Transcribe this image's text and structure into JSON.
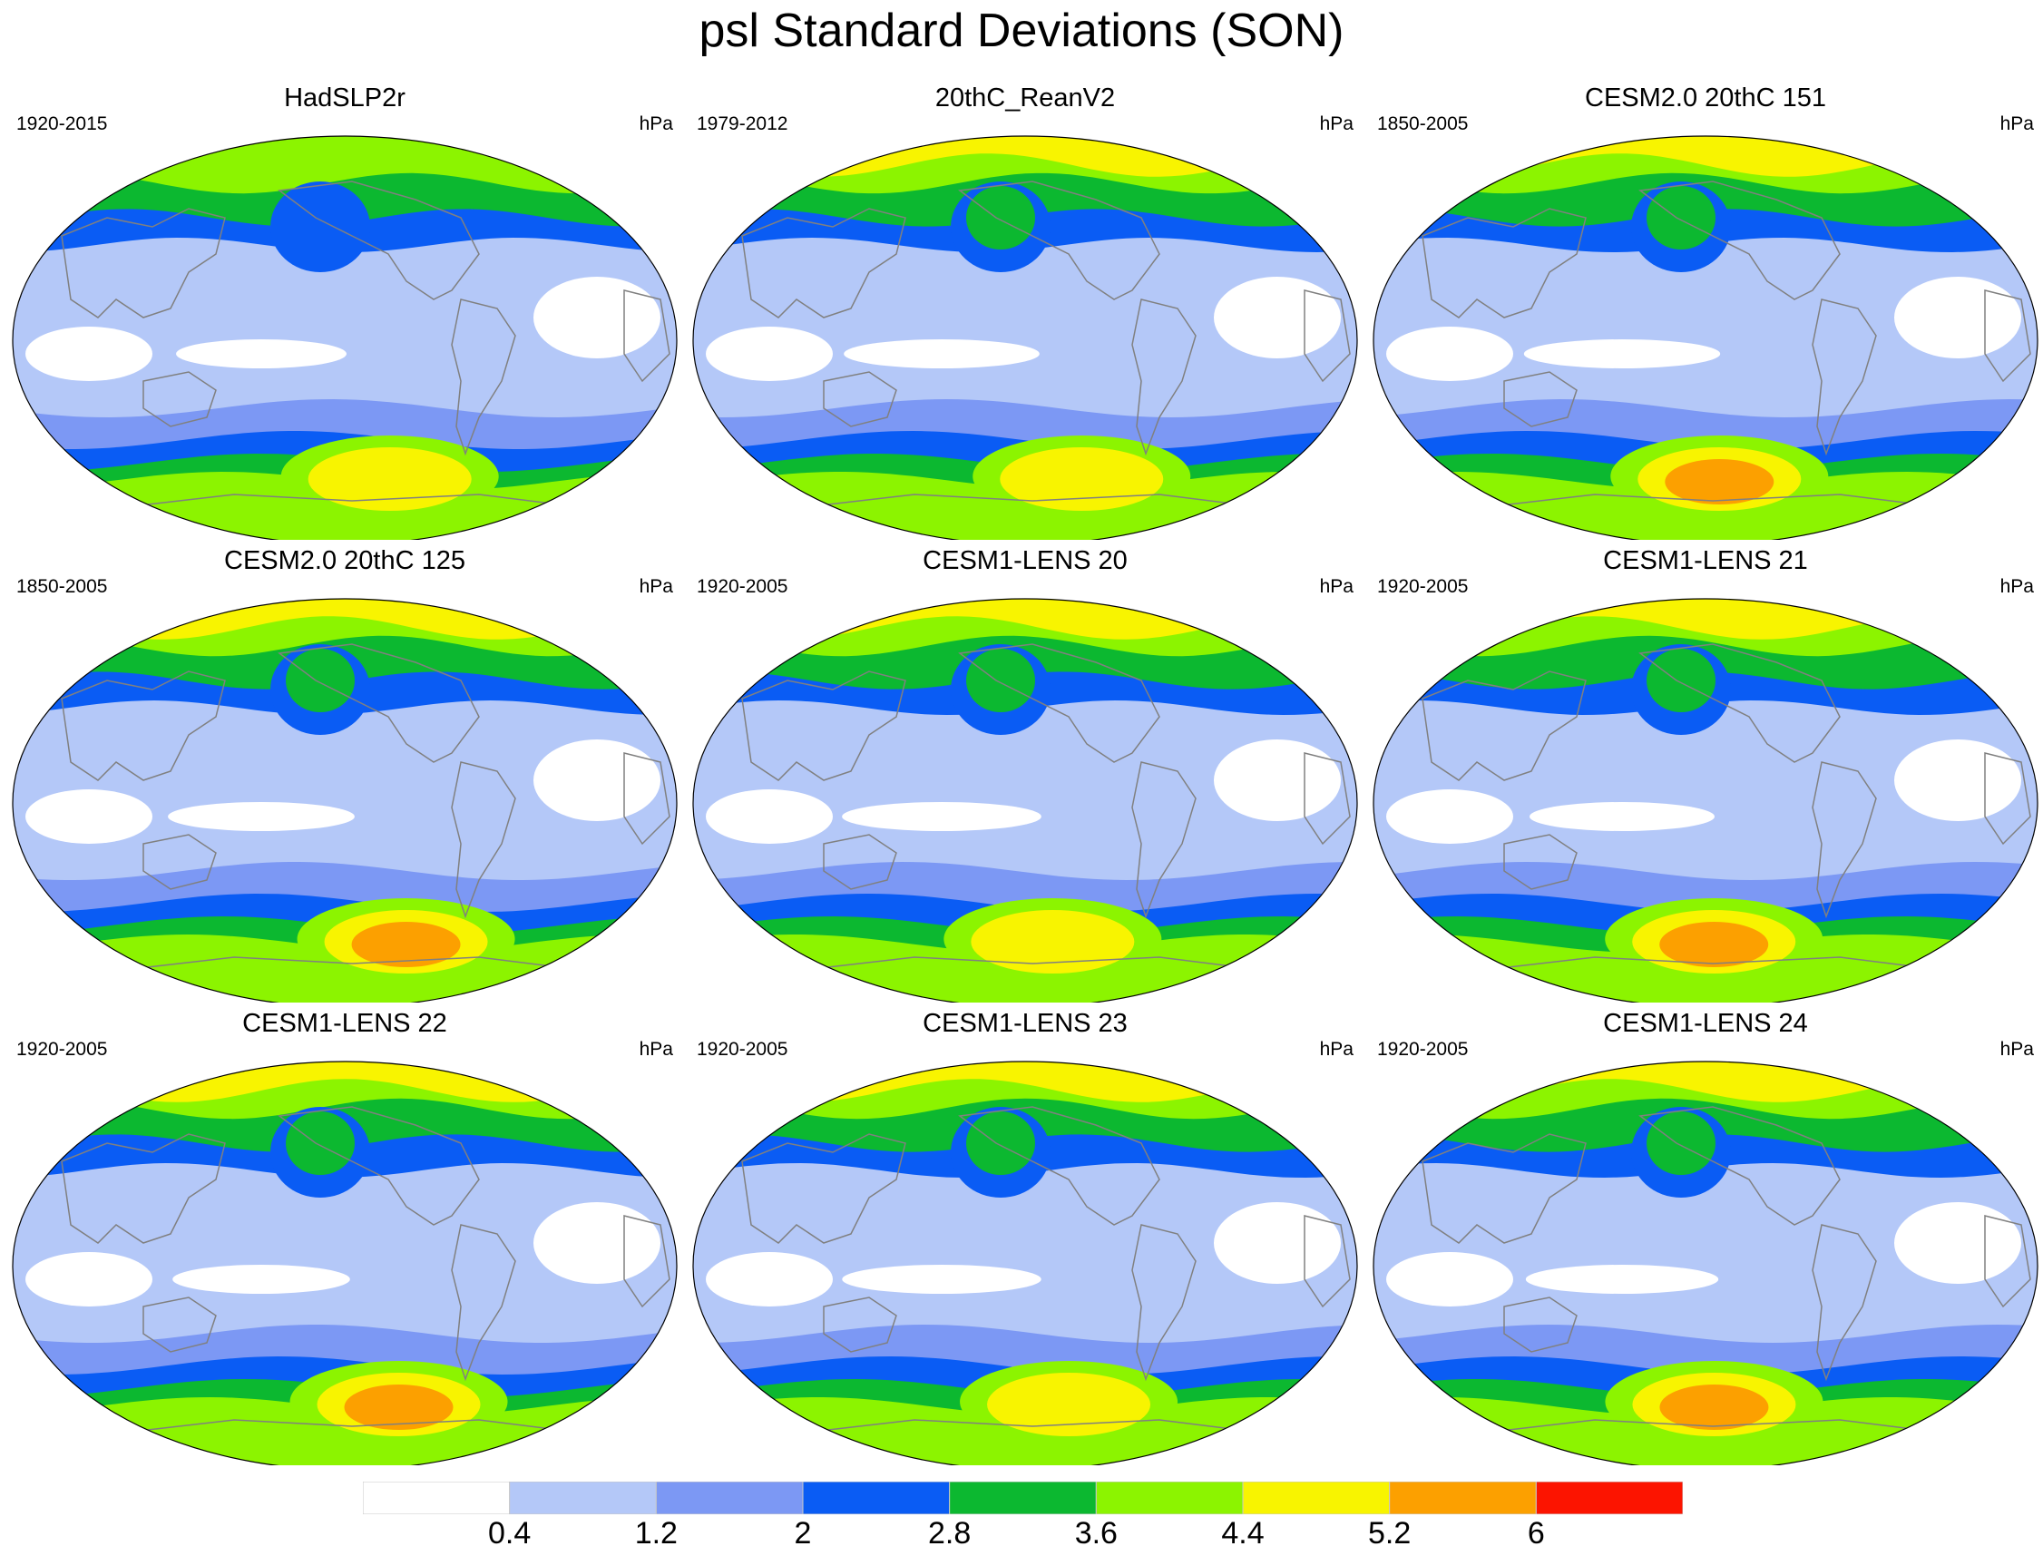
{
  "title": "psl Standard Deviations (SON)",
  "panels": [
    {
      "name": "HadSLP2r",
      "period": "1920-2015",
      "units": "hPa"
    },
    {
      "name": "20thC_ReanV2",
      "period": "1979-2012",
      "units": "hPa"
    },
    {
      "name": "CESM2.0 20thC 151",
      "period": "1850-2005",
      "units": "hPa"
    },
    {
      "name": "CESM2.0 20thC 125",
      "period": "1850-2005",
      "units": "hPa"
    },
    {
      "name": "CESM1-LENS 20",
      "period": "1920-2005",
      "units": "hPa"
    },
    {
      "name": "CESM1-LENS 21",
      "period": "1920-2005",
      "units": "hPa"
    },
    {
      "name": "CESM1-LENS 22",
      "period": "1920-2005",
      "units": "hPa"
    },
    {
      "name": "CESM1-LENS 23",
      "period": "1920-2005",
      "units": "hPa"
    },
    {
      "name": "CESM1-LENS 24",
      "period": "1920-2005",
      "units": "hPa"
    }
  ],
  "colorbar": {
    "levels": [
      "0.4",
      "1.2",
      "2",
      "2.8",
      "3.6",
      "4.4",
      "5.2",
      "6"
    ],
    "colors": [
      "#ffffff",
      "#b4c8f8",
      "#7c98f4",
      "#0a5cf4",
      "#0cb830",
      "#8cf400",
      "#f8f400",
      "#fca000",
      "#fc1400"
    ]
  },
  "colors": {
    "coastline": "#808080",
    "map_border": "#000000"
  }
}
